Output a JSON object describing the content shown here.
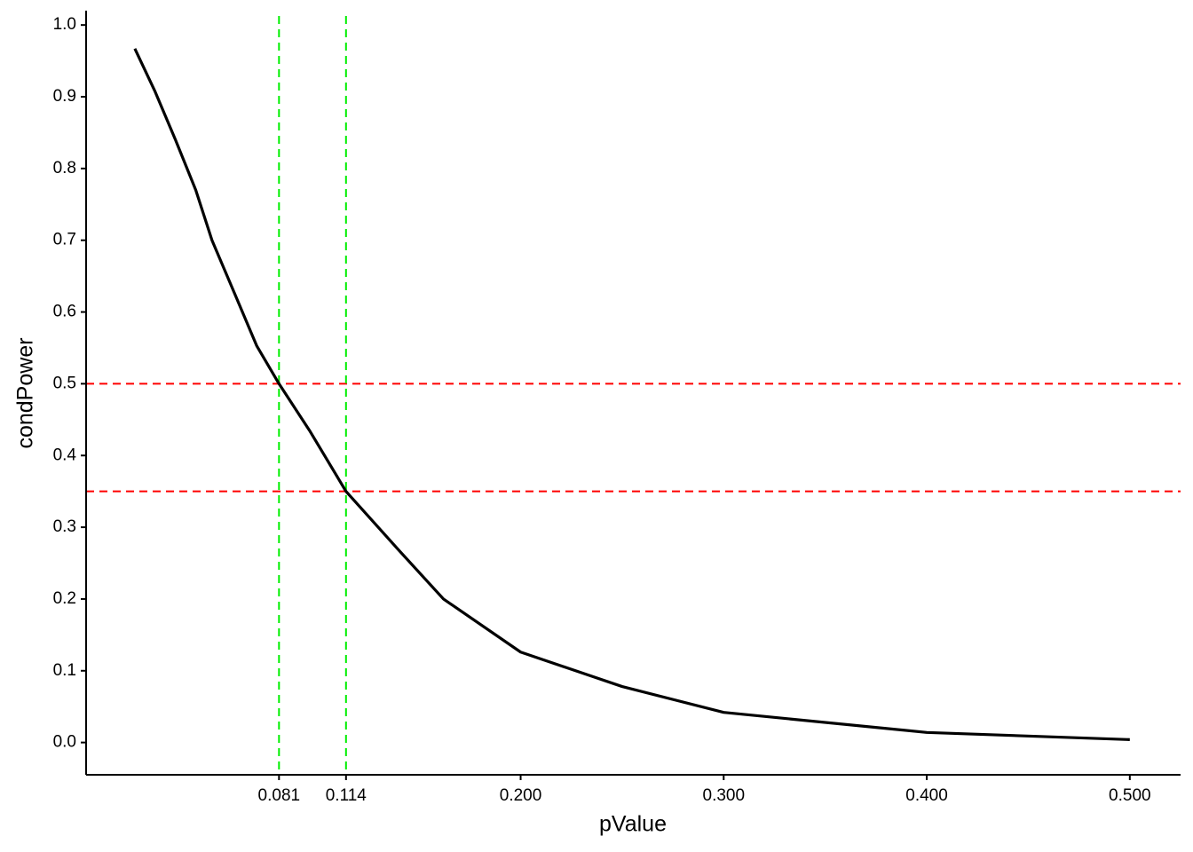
{
  "chart_data": {
    "type": "line",
    "x_label": "pValue",
    "y_label": "condPower",
    "x": [
      0.01,
      0.02,
      0.03,
      0.04,
      0.048,
      0.06,
      0.07,
      0.081,
      0.096,
      0.114,
      0.14,
      0.162,
      0.2,
      0.25,
      0.3,
      0.4,
      0.5
    ],
    "series": [
      {
        "color": "#000000",
        "values": [
          0.967,
          0.907,
          0.84,
          0.77,
          0.7,
          0.62,
          0.553,
          0.5,
          0.435,
          0.35,
          0.268,
          0.2,
          0.126,
          0.078,
          0.042,
          0.014,
          0.004
        ]
      }
    ],
    "hlines": {
      "color": "#ff0000",
      "values": [
        0.5,
        0.35
      ]
    },
    "vlines": {
      "color": "#00ee00",
      "values": [
        0.081,
        0.114
      ]
    },
    "xlim": [
      -0.014,
      0.525
    ],
    "ylim": [
      -0.045,
      1.02
    ],
    "xticks": [
      0.081,
      0.114,
      {
        "value": 0.2,
        "label": "0.200"
      },
      {
        "value": 0.3,
        "label": "0.300"
      },
      {
        "value": 0.4,
        "label": "0.400"
      },
      {
        "value": 0.5,
        "label": "0.500"
      }
    ],
    "yticks": [
      {
        "value": 0,
        "label": "0.0"
      },
      0.1,
      0.2,
      0.3,
      0.4,
      0.5,
      0.6,
      0.7,
      0.8,
      0.9,
      {
        "value": 1,
        "label": "1.0"
      }
    ],
    "grid": false
  }
}
